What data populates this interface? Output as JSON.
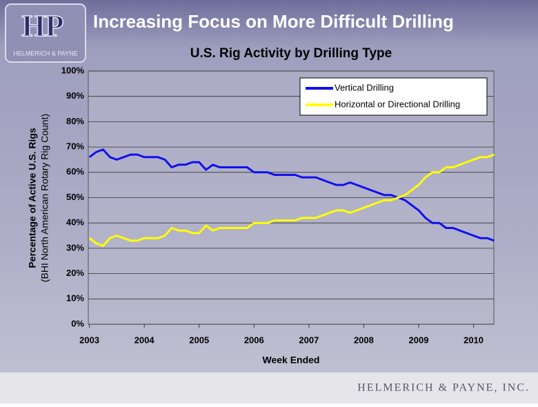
{
  "slide": {
    "title": "Increasing Focus on More Difficult Drilling",
    "logo": {
      "mark": "HP",
      "name": "HELMERICH & PAYNE"
    },
    "footer": "HELMERICH & PAYNE, INC."
  },
  "chart_data": {
    "type": "line",
    "title": "U.S. Rig Activity by Drilling Type",
    "x_label": "Week Ended",
    "y_label": [
      "Percentage of Active U.S. Rigs",
      "(BHI North American Rotary Rig Count)"
    ],
    "x": [
      2003,
      2003.125,
      2003.25,
      2003.375,
      2003.5,
      2003.625,
      2003.75,
      2003.875,
      2004,
      2004.125,
      2004.25,
      2004.375,
      2004.5,
      2004.625,
      2004.75,
      2004.875,
      2005,
      2005.125,
      2005.25,
      2005.375,
      2005.5,
      2005.625,
      2005.75,
      2005.875,
      2006,
      2006.125,
      2006.25,
      2006.375,
      2006.5,
      2006.625,
      2006.75,
      2006.875,
      2007,
      2007.125,
      2007.25,
      2007.375,
      2007.5,
      2007.625,
      2007.75,
      2007.875,
      2008,
      2008.125,
      2008.25,
      2008.375,
      2008.5,
      2008.625,
      2008.75,
      2008.875,
      2009,
      2009.125,
      2009.25,
      2009.375,
      2009.5,
      2009.625,
      2009.75,
      2009.875,
      2010,
      2010.125,
      2010.25,
      2010.375
    ],
    "series": [
      {
        "name": "Vertical Drilling",
        "color": "#1010ee",
        "values": [
          66,
          68,
          69,
          66,
          65,
          66,
          67,
          67,
          66,
          66,
          66,
          65,
          62,
          63,
          63,
          64,
          64,
          61,
          63,
          62,
          62,
          62,
          62,
          62,
          60,
          60,
          60,
          59,
          59,
          59,
          59,
          58,
          58,
          58,
          57,
          56,
          55,
          55,
          56,
          55,
          54,
          53,
          52,
          51,
          51,
          50,
          49,
          47,
          45,
          42,
          40,
          40,
          38,
          38,
          37,
          36,
          35,
          34,
          34,
          33
        ]
      },
      {
        "name": "Horizontal or Directional Drilling",
        "color": "#ffff00",
        "values": [
          34,
          32,
          31,
          34,
          35,
          34,
          33,
          33,
          34,
          34,
          34,
          35,
          38,
          37,
          37,
          36,
          36,
          39,
          37,
          38,
          38,
          38,
          38,
          38,
          40,
          40,
          40,
          41,
          41,
          41,
          41,
          42,
          42,
          42,
          43,
          44,
          45,
          45,
          44,
          45,
          46,
          47,
          48,
          49,
          49,
          50,
          51,
          53,
          55,
          58,
          60,
          60,
          62,
          62,
          63,
          64,
          65,
          66,
          66,
          67
        ]
      }
    ],
    "xlim": [
      2002.98,
      2010.37
    ],
    "xticks": [
      2003,
      2004,
      2005,
      2006,
      2007,
      2008,
      2009,
      2010
    ],
    "ylim": [
      0,
      100
    ],
    "yticks": [
      {
        "value": 0,
        "label": "0%"
      },
      {
        "value": 10,
        "label": "10%"
      },
      {
        "value": 20,
        "label": "20%"
      },
      {
        "value": 30,
        "label": "30%"
      },
      {
        "value": 40,
        "label": "40%"
      },
      {
        "value": 50,
        "label": "50%"
      },
      {
        "value": 60,
        "label": "60%"
      },
      {
        "value": 70,
        "label": "70%"
      },
      {
        "value": 80,
        "label": "80%"
      },
      {
        "value": 90,
        "label": "90%"
      },
      {
        "value": 100,
        "label": "100%"
      }
    ],
    "grid": true,
    "legend": "upper-right"
  }
}
